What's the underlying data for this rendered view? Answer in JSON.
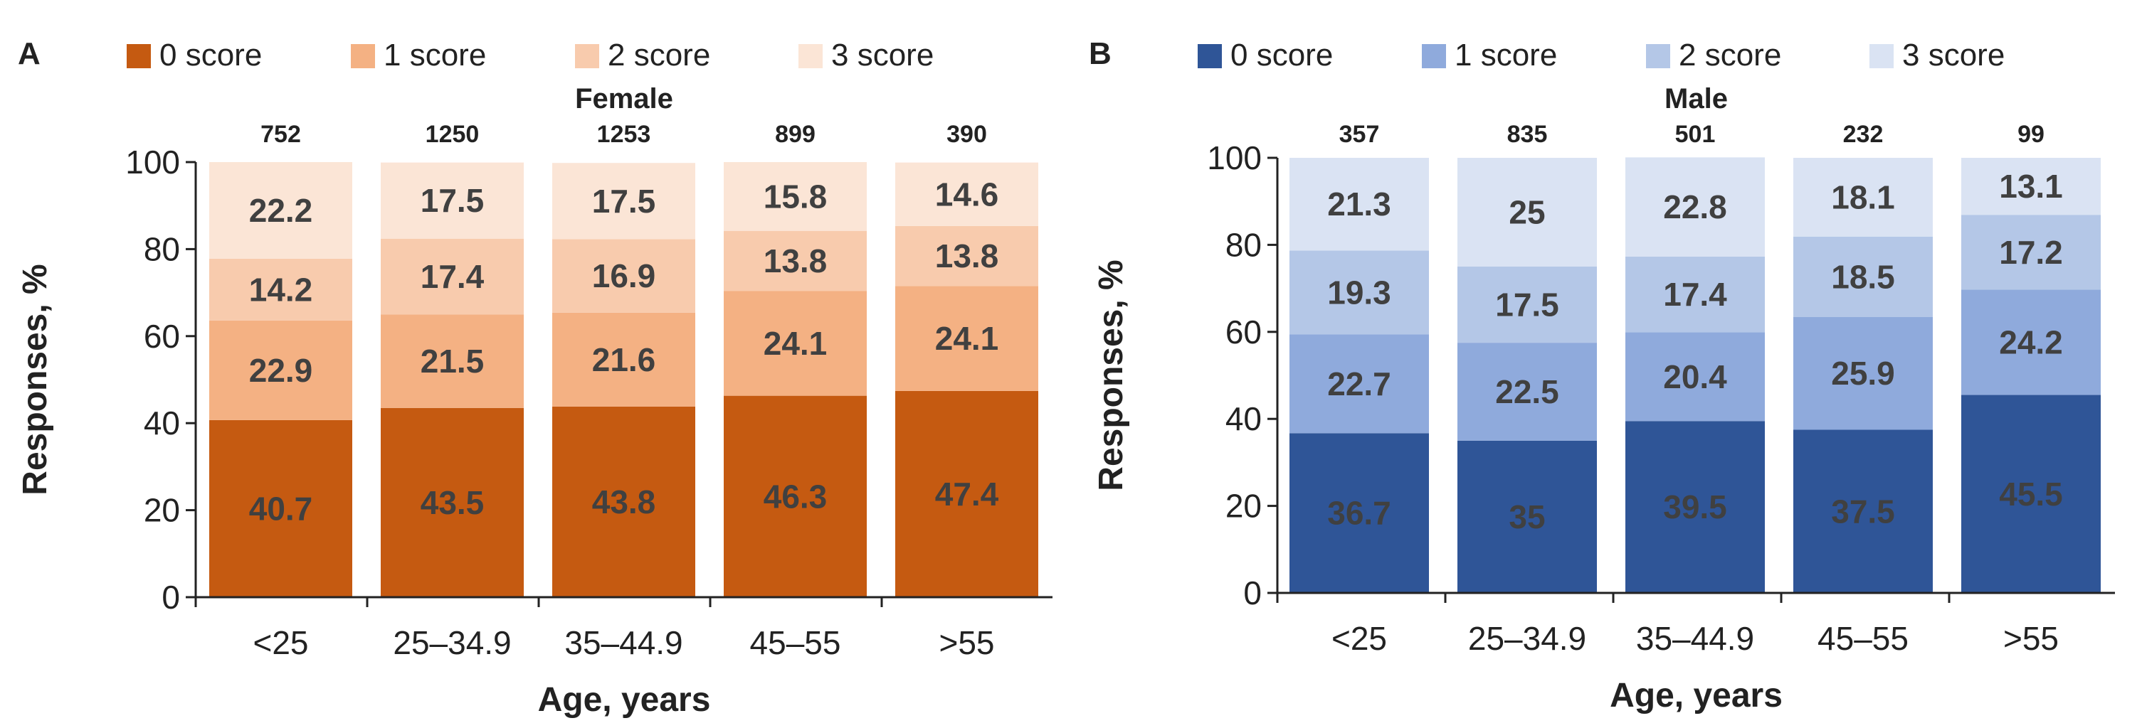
{
  "chart_data": [
    {
      "type": "bar",
      "stacked": true,
      "panel_label": "A",
      "title": "Female",
      "xlabel": "Age, years",
      "ylabel": "Responses, %",
      "ylim": [
        0,
        100
      ],
      "yticks": [
        0,
        20,
        40,
        60,
        80,
        100
      ],
      "grid": false,
      "legend_position": "top",
      "categories": [
        "<25",
        "25–34.9",
        "35–44.9",
        "45–55",
        ">55"
      ],
      "n_values": [
        "752",
        "1250",
        "1253",
        "899",
        "390"
      ],
      "series": [
        {
          "name": "0 score",
          "color": "#c55a11",
          "values": [
            40.7,
            43.5,
            43.8,
            46.3,
            47.4
          ]
        },
        {
          "name": "1 score",
          "color": "#f4b183",
          "values": [
            22.9,
            21.5,
            21.6,
            24.1,
            24.1
          ]
        },
        {
          "name": "2 score",
          "color": "#f8cbad",
          "values": [
            14.2,
            17.4,
            16.9,
            13.8,
            13.8
          ]
        },
        {
          "name": "3 score",
          "color": "#fbe5d6",
          "values": [
            22.2,
            17.5,
            17.5,
            15.8,
            14.6
          ]
        }
      ]
    },
    {
      "type": "bar",
      "stacked": true,
      "panel_label": "B",
      "title": "Male",
      "xlabel": "Age, years",
      "ylabel": "Responses, %",
      "ylim": [
        0,
        100
      ],
      "yticks": [
        0,
        20,
        40,
        60,
        80,
        100
      ],
      "grid": false,
      "legend_position": "top",
      "categories": [
        "<25",
        "25–34.9",
        "35–44.9",
        "45–55",
        ">55"
      ],
      "n_values": [
        "357",
        "835",
        "501",
        "232",
        "99"
      ],
      "series": [
        {
          "name": "0  score",
          "color": "#2f5597",
          "values": [
            36.7,
            35,
            39.5,
            37.5,
            45.5
          ]
        },
        {
          "name": "1 score",
          "color": "#8faadc",
          "values": [
            22.7,
            22.5,
            20.4,
            25.9,
            24.2
          ]
        },
        {
          "name": "2 score",
          "color": "#b4c7e7",
          "values": [
            19.3,
            17.5,
            17.4,
            18.5,
            17.2
          ]
        },
        {
          "name": "3 score",
          "color": "#dae3f3",
          "values": [
            21.3,
            25,
            22.8,
            18.1,
            13.1
          ]
        }
      ]
    }
  ]
}
